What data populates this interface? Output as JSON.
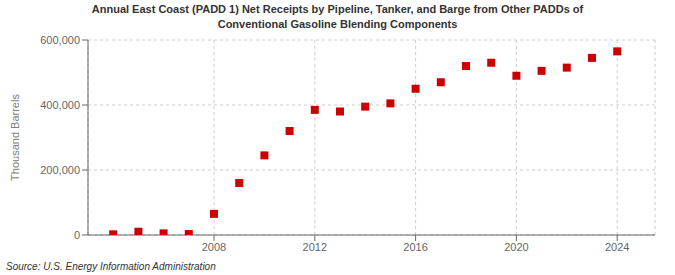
{
  "chart_data": {
    "type": "scatter",
    "title": "Annual East Coast (PADD 1) Net Receipts by Pipeline, Tanker, and Barge from Other PADDs of\nConventional Gasoline Blending Components",
    "y_label": "Thousand Barrels",
    "annotations": [
      "Source: U.S. Energy Information Administration"
    ],
    "x": [
      2004,
      2005,
      2006,
      2007,
      2008,
      2009,
      2010,
      2011,
      2012,
      2013,
      2014,
      2015,
      2016,
      2017,
      2018,
      2019,
      2020,
      2021,
      2022,
      2023,
      2024
    ],
    "values": [
      2000,
      10000,
      5000,
      3000,
      65000,
      160000,
      245000,
      320000,
      385000,
      380000,
      395000,
      405000,
      450000,
      470000,
      520000,
      530000,
      490000,
      505000,
      515000,
      545000,
      565000
    ],
    "color": "#cc0000",
    "marker": "square",
    "xlim": [
      2003.0,
      2025.5
    ],
    "xticks": [
      2008,
      2012,
      2016,
      2020,
      2024
    ],
    "ylim": [
      0,
      600000
    ],
    "yticks": [
      0,
      {
        "value": 200000,
        "label": "200,000"
      },
      {
        "value": 400000,
        "label": "400,000"
      },
      {
        "value": 600000,
        "label": "600,000"
      }
    ],
    "grid": true
  }
}
